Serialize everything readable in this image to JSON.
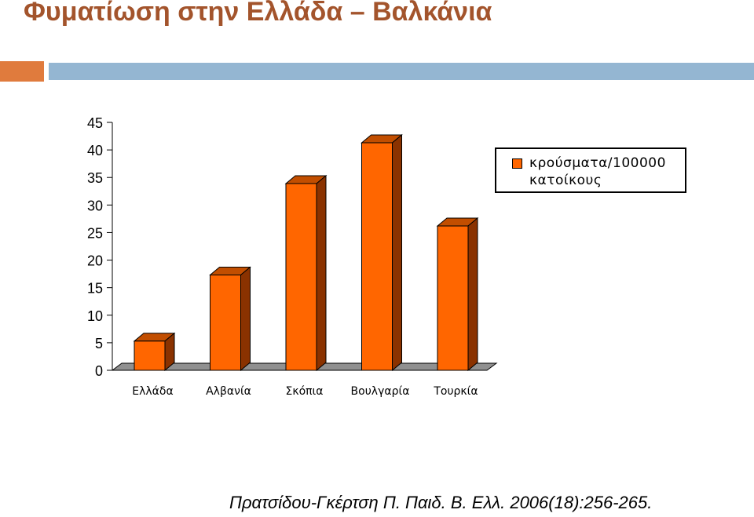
{
  "slide": {
    "title": "Φυματίωση στην Ελλάδα – Βαλκάνια",
    "citation": "Πρατσίδου-Γκέρτση Π. Παιδ. Β. Ελλ. 2006(18):256-265.",
    "colors": {
      "title": "#a3542c",
      "accent_orange": "#e07b3d",
      "accent_blue": "#94b6d2"
    }
  },
  "chart_data": {
    "type": "bar",
    "style": "3d-column",
    "categories": [
      "Ελλάδα",
      "Αλβανία",
      "Σκόπια",
      "Βουλγαρία",
      "Τουρκία"
    ],
    "series": [
      {
        "name": "κρούσματα/100000 κατοίκους",
        "values": [
          5.3,
          17.3,
          33.9,
          41.3,
          26.2
        ],
        "color": "#ff6600"
      }
    ],
    "ylim": [
      0,
      45
    ],
    "yticks": [
      "0",
      "5",
      "10",
      "15",
      "20",
      "25",
      "30",
      "35",
      "40",
      "45"
    ],
    "grid": false,
    "legend": {
      "position": "right",
      "label_lines": [
        "κρούσματα/100000",
        "κατοίκους"
      ]
    },
    "title": "",
    "xlabel": "",
    "ylabel": ""
  }
}
